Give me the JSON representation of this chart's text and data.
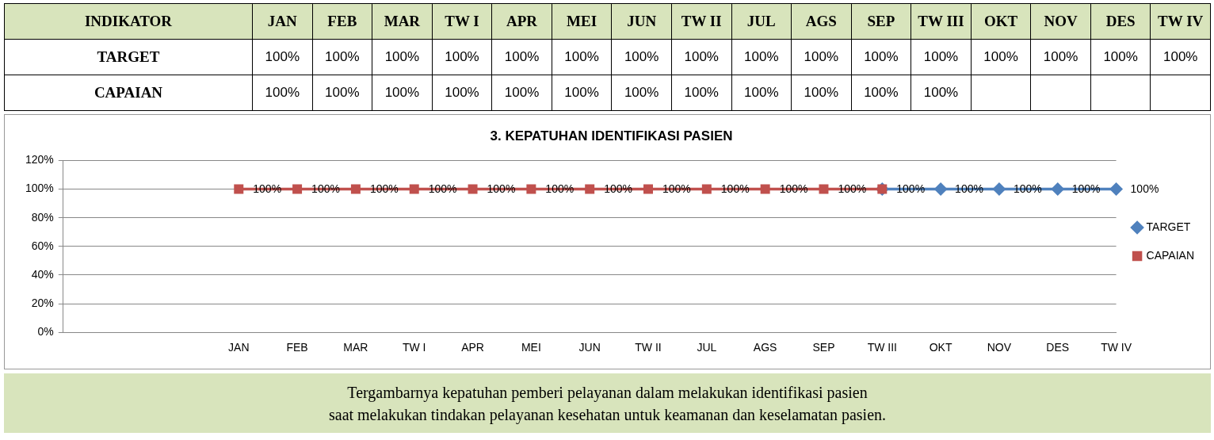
{
  "chart_data": {
    "type": "line",
    "title": "3. KEPATUHAN IDENTIFIKASI PASIEN",
    "categories": [
      null,
      null,
      null,
      "JAN",
      "FEB",
      "MAR",
      "TW I",
      "APR",
      "MEI",
      "JUN",
      "TW II",
      "JUL",
      "AGS",
      "SEP",
      "TW III",
      "OKT",
      "NOV",
      "DES",
      "TW IV"
    ],
    "series": [
      {
        "name": "TARGET",
        "color": "#4f81bd",
        "marker": "diamond",
        "values": [
          null,
          null,
          null,
          null,
          null,
          null,
          null,
          null,
          null,
          null,
          null,
          null,
          null,
          null,
          100,
          100,
          100,
          100,
          100
        ],
        "value_labels": [
          null,
          null,
          null,
          "100%",
          "100%",
          "100%",
          "100%",
          "100%",
          "100%",
          "100%",
          "100%",
          "100%",
          "100%",
          "100%",
          "100%",
          "100%",
          "100%",
          "100%",
          "100%"
        ]
      },
      {
        "name": "CAPAIAN",
        "color": "#c0504d",
        "marker": "square",
        "values": [
          null,
          null,
          null,
          100,
          100,
          100,
          100,
          100,
          100,
          100,
          100,
          100,
          100,
          100,
          100,
          null,
          null,
          null,
          null
        ],
        "value_labels": [
          null,
          null,
          null,
          "100%",
          "100%",
          "100%",
          "100%",
          "100%",
          "100%",
          "100%",
          "100%",
          "100%",
          "100%",
          "100%",
          "100%",
          null,
          null,
          null,
          null
        ]
      }
    ],
    "ylim": [
      0,
      120
    ],
    "yticks": [
      {
        "value": 0,
        "label": "0%"
      },
      {
        "value": 20,
        "label": "20%"
      },
      {
        "value": 40,
        "label": "40%"
      },
      {
        "value": 60,
        "label": "60%"
      },
      {
        "value": 80,
        "label": "80%"
      },
      {
        "value": 100,
        "label": "100%"
      },
      {
        "value": 120,
        "label": "120%"
      }
    ],
    "grid": "y",
    "legend": "right",
    "line_style": "solid",
    "annotations": [
      "INDIKATOR",
      "Tergambarnya kepatuhan pemberi pelayanan dalam melakukan identifikasi pasien\nsaat melakukan tindakan pelayanan kesehatan untuk keamanan dan keselamatan pasien."
    ]
  }
}
